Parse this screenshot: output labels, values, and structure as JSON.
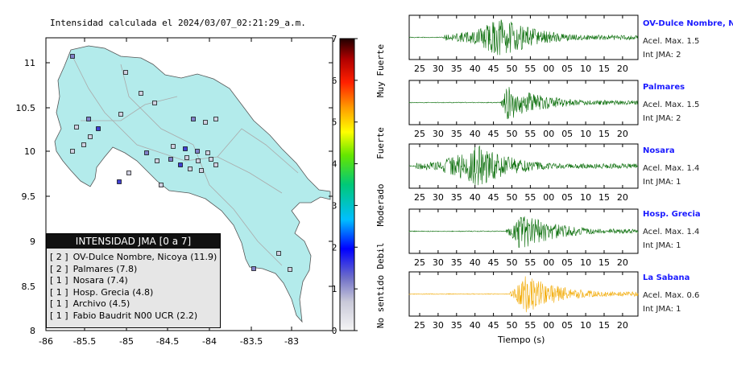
{
  "map": {
    "title": "Intensidad calculada el 2024/03/07_02:21:29_a.m.",
    "x_ticks": [
      "-86",
      "-85.5",
      "-85",
      "-84.5",
      "-84",
      "-83.5",
      "-83"
    ],
    "y_ticks": [
      "11",
      "10.5",
      "10",
      "9.5",
      "9",
      "8.5",
      "8"
    ],
    "land_color": "#b3ebeb",
    "legend": {
      "title": "INTENSIDAD JMA [0 a 7]",
      "items": [
        {
          "jma": "[ 2 ]",
          "label": "OV-Dulce Nombre, Nicoya (11.9)"
        },
        {
          "jma": "[ 2 ]",
          "label": "Palmares (7.8)"
        },
        {
          "jma": "[ 1 ]",
          "label": "Nosara (7.4)"
        },
        {
          "jma": "[ 1 ]",
          "label": "Hosp. Grecia (4.8)"
        },
        {
          "jma": "[ 1 ]",
          "label": "Archivo (4.5)"
        },
        {
          "jma": "[ 1 ]",
          "label": "Fabio Baudrit N00 UCR (2.2)"
        }
      ]
    }
  },
  "colorbar": {
    "ticks": [
      "0",
      "1",
      "2",
      "3",
      "4",
      "5",
      "6",
      "7"
    ],
    "labels": [
      "No sentido",
      "Debil",
      "Moderado",
      "Fuerte",
      "Muy Fuerte"
    ]
  },
  "traces": {
    "x_ticks": [
      "25",
      "30",
      "35",
      "40",
      "45",
      "50",
      "55",
      "00",
      "05",
      "10",
      "15",
      "20"
    ],
    "xlabel": "Tiempo (s)",
    "stations": [
      {
        "name": "OV-Dulce Nombre, Nicoya",
        "accel": "Acel. Max. 1.5",
        "jma": "Int JMA: 2",
        "color": "#0a6e0a"
      },
      {
        "name": "Palmares",
        "accel": "Acel. Max. 1.5",
        "jma": "Int JMA: 2",
        "color": "#0a6e0a"
      },
      {
        "name": "Nosara",
        "accel": "Acel. Max. 1.4",
        "jma": "Int JMA: 1",
        "color": "#0a6e0a"
      },
      {
        "name": "Hosp. Grecia",
        "accel": "Acel. Max. 1.4",
        "jma": "Int JMA: 1",
        "color": "#0a6e0a"
      },
      {
        "name": "La Sabana",
        "accel": "Acel. Max. 0.6",
        "jma": "Int JMA: 1",
        "color": "#f2a900"
      }
    ]
  }
}
